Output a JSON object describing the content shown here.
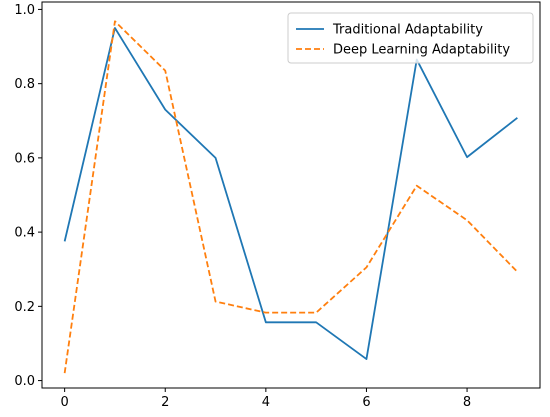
{
  "chart_data": {
    "type": "line",
    "title": "",
    "xlabel": "",
    "ylabel": "",
    "x": [
      0,
      1,
      2,
      3,
      4,
      5,
      6,
      7,
      8,
      9
    ],
    "xlim": [
      -0.45,
      9.45
    ],
    "ylim": [
      -0.02,
      1.02
    ],
    "xticks": [
      0,
      2,
      4,
      6,
      8
    ],
    "xtick_labels": [
      "0",
      "2",
      "4",
      "6",
      "8"
    ],
    "yticks": [
      0.0,
      0.2,
      0.4,
      0.6,
      0.8,
      1.0
    ],
    "ytick_labels": [
      "0.0",
      "0.2",
      "0.4",
      "0.6",
      "0.8",
      "1.0"
    ],
    "grid": false,
    "legend_position": "top-right",
    "series": [
      {
        "name": "Traditional Adaptability",
        "color": "#1f77b4",
        "linestyle": "solid",
        "values": [
          0.375,
          0.95,
          0.73,
          0.6,
          0.157,
          0.157,
          0.058,
          0.865,
          0.602,
          0.708
        ]
      },
      {
        "name": "Deep Learning Adaptability",
        "color": "#ff7f0e",
        "linestyle": "dashed",
        "values": [
          0.02,
          0.968,
          0.835,
          0.213,
          0.183,
          0.183,
          0.305,
          0.525,
          0.432,
          0.293
        ]
      }
    ]
  }
}
